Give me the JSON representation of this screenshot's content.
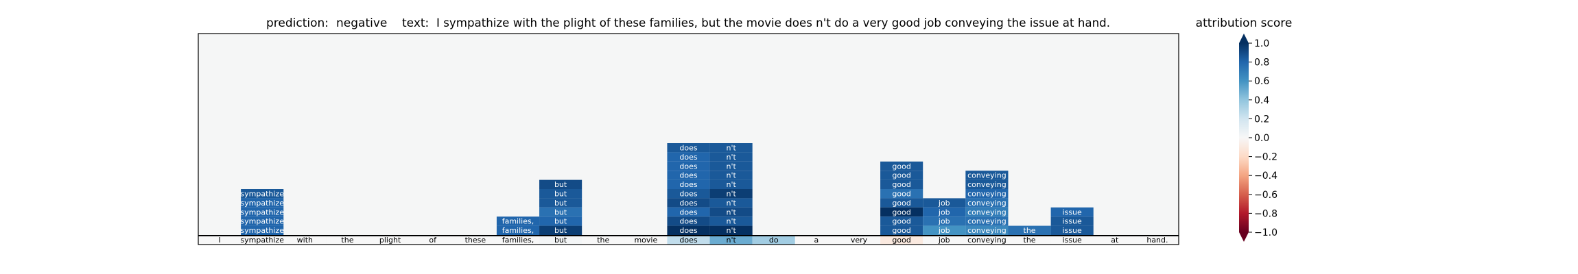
{
  "title": {
    "prediction_label": "prediction:",
    "prediction_value": "negative",
    "text_label": "text:",
    "text_value": "I sympathize with the plight of these families, but the movie does n't do a very good job conveying the issue at hand."
  },
  "colorbar": {
    "title": "attribution score",
    "ticks": [
      "1.0",
      "0.8",
      "0.6",
      "0.4",
      "0.2",
      "0.0",
      "−0.2",
      "−0.4",
      "−0.6",
      "−0.8",
      "−1.0"
    ],
    "tick_values": [
      1.0,
      0.8,
      0.6,
      0.4,
      0.2,
      0.0,
      -0.2,
      -0.4,
      -0.6,
      -0.8,
      -1.0
    ],
    "range": [
      -1.0,
      1.0
    ],
    "colormap": [
      "#67001f",
      "#b2182b",
      "#d6604d",
      "#f4a582",
      "#fddbc7",
      "#f7f7f7",
      "#d1e5f0",
      "#92c5de",
      "#4393c3",
      "#2166ac",
      "#053061"
    ]
  },
  "chart_data": {
    "type": "heatmap",
    "tokens": [
      "I",
      "sympathize",
      "with",
      "the",
      "plight",
      "of",
      "these",
      "families,",
      "but",
      "the",
      "movie",
      "does",
      "n't",
      "do",
      "a",
      "very",
      "good",
      "job",
      "conveying",
      "the",
      "issue",
      "at",
      "hand."
    ],
    "base_scores": [
      0.0,
      0.0,
      0.0,
      0.0,
      0.0,
      0.0,
      0.0,
      0.0,
      0.02,
      0.0,
      0.0,
      0.25,
      0.5,
      0.35,
      0.0,
      0.0,
      -0.1,
      0.0,
      0.0,
      0.0,
      0.0,
      0.0,
      0.0
    ],
    "stacks": [
      {
        "token_index": 1,
        "scores": [
          0.85,
          0.8,
          0.8,
          0.8,
          0.8
        ]
      },
      {
        "token_index": 7,
        "scores": [
          0.8,
          0.8
        ]
      },
      {
        "token_index": 8,
        "scores": [
          0.9,
          0.85,
          0.85,
          0.75,
          0.8,
          0.95
        ]
      },
      {
        "token_index": 11,
        "scores": [
          0.85,
          0.8,
          0.8,
          0.8,
          0.8,
          0.85,
          0.9,
          0.8,
          0.9,
          1.0
        ]
      },
      {
        "token_index": 12,
        "scores": [
          0.85,
          0.85,
          0.85,
          0.85,
          0.85,
          0.95,
          0.85,
          0.9,
          0.85,
          1.0
        ]
      },
      {
        "token_index": 16,
        "scores": [
          0.85,
          0.85,
          0.85,
          0.75,
          0.85,
          1.0,
          0.85,
          0.85
        ]
      },
      {
        "token_index": 17,
        "scores": [
          0.85,
          0.8,
          0.75,
          0.6
        ]
      },
      {
        "token_index": 18,
        "scores": [
          0.85,
          0.85,
          0.8,
          0.75,
          0.7,
          0.75,
          0.65
        ]
      },
      {
        "token_index": 19,
        "scores": [
          0.75
        ]
      },
      {
        "token_index": 20,
        "scores": [
          0.8,
          0.85,
          0.85
        ]
      }
    ],
    "grid": false,
    "legend": "colorbar-right"
  }
}
